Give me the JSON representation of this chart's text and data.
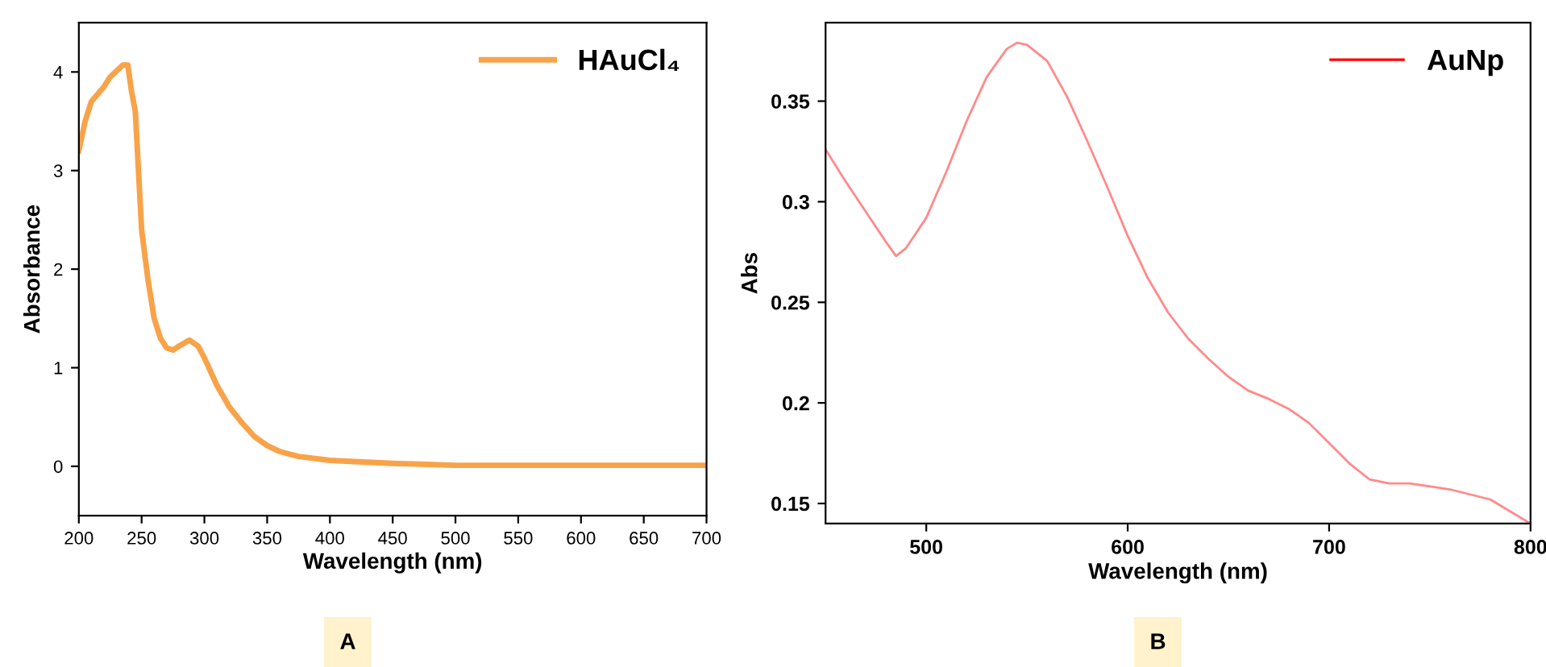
{
  "chart_data": [
    {
      "type": "line",
      "xlabel": "Wavelength (nm)",
      "ylabel": "Absorbance",
      "xlim": [
        200,
        700
      ],
      "ylim": [
        -0.5,
        4.5
      ],
      "xticks": [
        200,
        250,
        300,
        350,
        400,
        450,
        500,
        550,
        600,
        650,
        700
      ],
      "yticks": [
        0,
        1,
        2,
        3,
        4
      ],
      "legend": "top right",
      "annotations": [
        "A"
      ],
      "series": [
        {
          "name": "HAuCl₄",
          "color": "#f8a349",
          "x": [
            200,
            205,
            210,
            220,
            225,
            235,
            239,
            242,
            245,
            250,
            255,
            260,
            265,
            270,
            275,
            280,
            288,
            295,
            300,
            310,
            320,
            330,
            340,
            350,
            360,
            375,
            400,
            450,
            500,
            600,
            700
          ],
          "values": [
            3.2,
            3.5,
            3.7,
            3.85,
            3.95,
            4.07,
            4.07,
            3.8,
            3.6,
            2.4,
            1.9,
            1.5,
            1.3,
            1.2,
            1.18,
            1.22,
            1.28,
            1.22,
            1.1,
            0.82,
            0.6,
            0.44,
            0.3,
            0.21,
            0.15,
            0.1,
            0.06,
            0.03,
            0.01,
            0.01,
            0.01
          ]
        }
      ]
    },
    {
      "type": "line",
      "xlabel": "Wavelength (nm)",
      "ylabel": "Abs",
      "xlim": [
        450,
        800
      ],
      "ylim": [
        0.14,
        0.389
      ],
      "xticks": [
        500,
        600,
        700,
        800
      ],
      "yticks": [
        0.15,
        0.2,
        0.25,
        0.3,
        0.35
      ],
      "legend": "top right",
      "annotations": [
        "B"
      ],
      "series": [
        {
          "name": "AuNp",
          "color": "#ff8a8a",
          "x": [
            450,
            460,
            470,
            480,
            485,
            490,
            500,
            510,
            520,
            530,
            540,
            545,
            550,
            560,
            570,
            580,
            590,
            600,
            610,
            620,
            630,
            640,
            650,
            660,
            670,
            680,
            690,
            700,
            710,
            720,
            730,
            740,
            760,
            780,
            800
          ],
          "values": [
            0.326,
            0.31,
            0.295,
            0.28,
            0.273,
            0.277,
            0.292,
            0.315,
            0.34,
            0.362,
            0.376,
            0.379,
            0.378,
            0.37,
            0.352,
            0.33,
            0.307,
            0.283,
            0.262,
            0.245,
            0.232,
            0.222,
            0.213,
            0.206,
            0.202,
            0.197,
            0.19,
            0.18,
            0.17,
            0.162,
            0.16,
            0.16,
            0.157,
            0.152,
            0.14
          ]
        }
      ]
    }
  ]
}
